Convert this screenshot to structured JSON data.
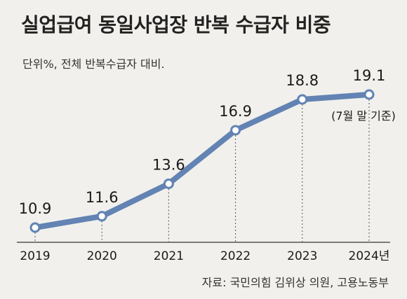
{
  "title": "실업급여 동일사업장 반복 수급자 비중",
  "subtitle": "단위%, 전체 반복수급자 대비.",
  "source": "자료: 국민의힘 김위상 의원, 고용노동부",
  "chart_data": {
    "type": "line",
    "x": [
      "2019",
      "2020",
      "2021",
      "2022",
      "2023",
      "2024년"
    ],
    "values": [
      10.9,
      11.6,
      13.6,
      16.9,
      18.8,
      19.1
    ],
    "value_labels": [
      "10.9",
      "11.6",
      "13.6",
      "16.9",
      "18.8",
      "19.1"
    ],
    "annotation": "(7월 말 기준)",
    "title": "실업급여 동일사업장 반복 수급자 비중",
    "xlabel": "",
    "ylabel": "",
    "unit": "%",
    "grid": false,
    "legend": "none",
    "colors": {
      "line": "#6283b3",
      "marker_fill": "#ffffff",
      "guide": "#555555"
    }
  }
}
